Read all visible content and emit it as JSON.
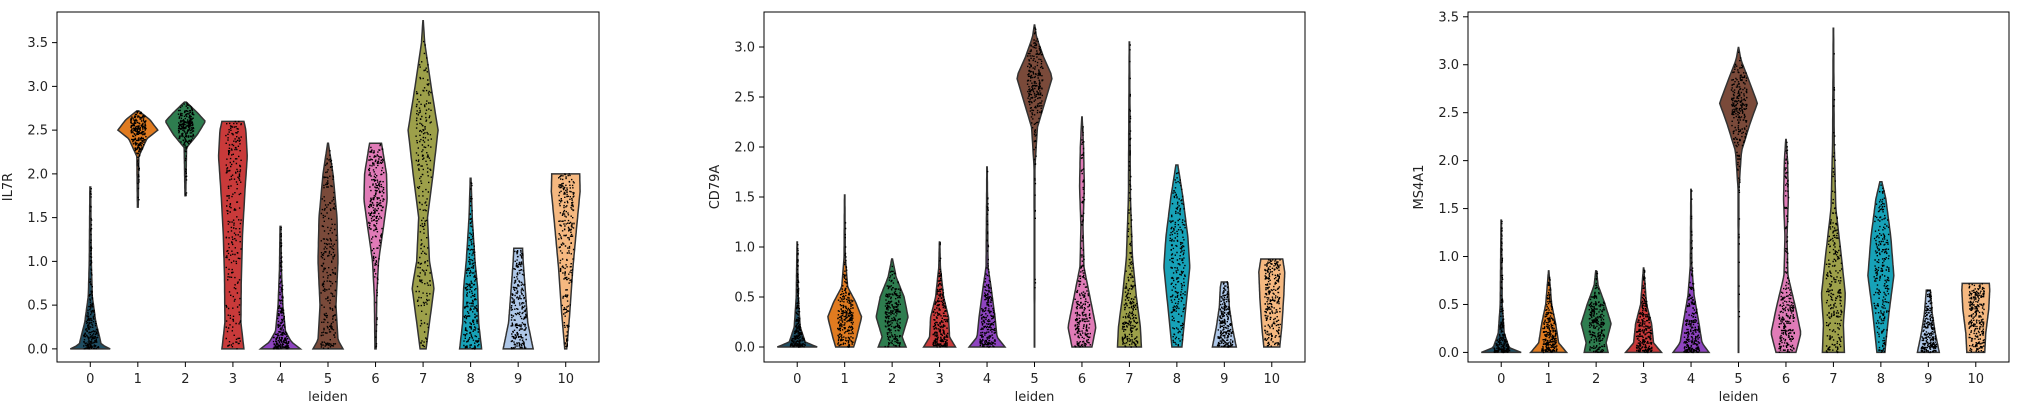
{
  "chart_data": [
    {
      "type": "violin",
      "ylabel": "IL7R",
      "xlabel": "leiden",
      "categories": [
        "0",
        "1",
        "2",
        "3",
        "4",
        "5",
        "6",
        "7",
        "8",
        "9",
        "10"
      ],
      "colors": [
        "#1f4e63",
        "#e07b20",
        "#2e7d4f",
        "#c93a3a",
        "#8e44c0",
        "#7a4a3a",
        "#e07bb7",
        "#9da04a",
        "#17a2b8",
        "#aec7e8",
        "#f5b880"
      ],
      "ylim": [
        -0.15,
        3.85
      ],
      "yticks": [
        "0.0",
        "0.5",
        "1.0",
        "1.5",
        "2.0",
        "2.5",
        "3.0",
        "3.5"
      ],
      "ytick_values": [
        0.0,
        0.5,
        1.0,
        1.5,
        2.0,
        2.5,
        3.0,
        3.5
      ],
      "series": [
        {
          "min": 0.0,
          "max": 1.85,
          "profile": [
            [
              0.0,
              1.0
            ],
            [
              0.05,
              0.55
            ],
            [
              0.15,
              0.45
            ],
            [
              0.3,
              0.28
            ],
            [
              0.6,
              0.1
            ],
            [
              1.0,
              0.05
            ],
            [
              1.85,
              0.02
            ]
          ]
        },
        {
          "min": 1.62,
          "max": 2.72,
          "profile": [
            [
              1.62,
              0.02
            ],
            [
              2.2,
              0.05
            ],
            [
              2.4,
              0.45
            ],
            [
              2.5,
              1.0
            ],
            [
              2.62,
              0.6
            ],
            [
              2.72,
              0.05
            ]
          ]
        },
        {
          "min": 1.75,
          "max": 2.82,
          "profile": [
            [
              1.75,
              0.02
            ],
            [
              2.3,
              0.06
            ],
            [
              2.45,
              0.6
            ],
            [
              2.6,
              1.0
            ],
            [
              2.7,
              0.6
            ],
            [
              2.82,
              0.05
            ]
          ]
        },
        {
          "min": 0.0,
          "max": 2.6,
          "profile": [
            [
              0.0,
              0.55
            ],
            [
              0.3,
              0.4
            ],
            [
              0.8,
              0.42
            ],
            [
              1.3,
              0.48
            ],
            [
              1.8,
              0.6
            ],
            [
              2.2,
              0.72
            ],
            [
              2.5,
              0.65
            ],
            [
              2.6,
              0.55
            ]
          ]
        },
        {
          "min": 0.0,
          "max": 1.4,
          "profile": [
            [
              0.0,
              1.0
            ],
            [
              0.08,
              0.55
            ],
            [
              0.2,
              0.25
            ],
            [
              0.5,
              0.12
            ],
            [
              0.9,
              0.05
            ],
            [
              1.4,
              0.02
            ]
          ]
        },
        {
          "min": 0.0,
          "max": 2.35,
          "profile": [
            [
              0.0,
              0.75
            ],
            [
              0.1,
              0.5
            ],
            [
              0.5,
              0.4
            ],
            [
              1.0,
              0.5
            ],
            [
              1.5,
              0.45
            ],
            [
              2.0,
              0.25
            ],
            [
              2.35,
              0.02
            ]
          ]
        },
        {
          "min": 0.0,
          "max": 2.35,
          "profile": [
            [
              0.0,
              0.03
            ],
            [
              0.6,
              0.06
            ],
            [
              1.0,
              0.15
            ],
            [
              1.4,
              0.4
            ],
            [
              1.7,
              0.58
            ],
            [
              2.0,
              0.55
            ],
            [
              2.35,
              0.3
            ]
          ]
        },
        {
          "min": 0.0,
          "max": 3.75,
          "profile": [
            [
              0.0,
              0.15
            ],
            [
              0.3,
              0.32
            ],
            [
              0.7,
              0.55
            ],
            [
              1.0,
              0.32
            ],
            [
              1.5,
              0.22
            ],
            [
              2.0,
              0.5
            ],
            [
              2.5,
              0.75
            ],
            [
              3.0,
              0.4
            ],
            [
              3.5,
              0.08
            ],
            [
              3.75,
              0.01
            ]
          ]
        },
        {
          "min": 0.0,
          "max": 1.95,
          "profile": [
            [
              0.0,
              0.55
            ],
            [
              0.3,
              0.4
            ],
            [
              0.7,
              0.35
            ],
            [
              1.0,
              0.22
            ],
            [
              1.5,
              0.08
            ],
            [
              1.95,
              0.02
            ]
          ]
        },
        {
          "min": 0.0,
          "max": 1.15,
          "profile": [
            [
              0.0,
              0.75
            ],
            [
              0.3,
              0.48
            ],
            [
              0.6,
              0.38
            ],
            [
              1.0,
              0.25
            ],
            [
              1.15,
              0.22
            ]
          ]
        },
        {
          "min": 0.0,
          "max": 2.0,
          "profile": [
            [
              0.0,
              0.05
            ],
            [
              0.4,
              0.2
            ],
            [
              0.9,
              0.35
            ],
            [
              1.4,
              0.55
            ],
            [
              1.8,
              0.72
            ],
            [
              2.0,
              0.7
            ]
          ]
        }
      ]
    },
    {
      "type": "violin",
      "ylabel": "CD79A",
      "xlabel": "leiden",
      "categories": [
        "0",
        "1",
        "2",
        "3",
        "4",
        "5",
        "6",
        "7",
        "8",
        "9",
        "10"
      ],
      "colors": [
        "#1f4e63",
        "#e07b20",
        "#2e7d4f",
        "#c93a3a",
        "#8e44c0",
        "#7a4a3a",
        "#e07bb7",
        "#9da04a",
        "#17a2b8",
        "#aec7e8",
        "#f5b880"
      ],
      "ylim": [
        -0.15,
        3.35
      ],
      "yticks": [
        "0.0",
        "0.5",
        "1.0",
        "1.5",
        "2.0",
        "2.5",
        "3.0"
      ],
      "ytick_values": [
        0.0,
        0.5,
        1.0,
        1.5,
        2.0,
        2.5,
        3.0
      ],
      "series": [
        {
          "min": 0.0,
          "max": 1.05,
          "profile": [
            [
              0.0,
              1.0
            ],
            [
              0.05,
              0.4
            ],
            [
              0.2,
              0.15
            ],
            [
              0.5,
              0.05
            ],
            [
              1.05,
              0.01
            ]
          ]
        },
        {
          "min": 0.0,
          "max": 1.52,
          "profile": [
            [
              0.0,
              0.45
            ],
            [
              0.1,
              0.6
            ],
            [
              0.3,
              0.85
            ],
            [
              0.45,
              0.55
            ],
            [
              0.6,
              0.15
            ],
            [
              0.9,
              0.03
            ],
            [
              1.52,
              0.01
            ]
          ]
        },
        {
          "min": 0.0,
          "max": 0.88,
          "profile": [
            [
              0.0,
              0.7
            ],
            [
              0.1,
              0.5
            ],
            [
              0.3,
              0.8
            ],
            [
              0.5,
              0.6
            ],
            [
              0.7,
              0.2
            ],
            [
              0.88,
              0.02
            ]
          ]
        },
        {
          "min": 0.0,
          "max": 1.05,
          "profile": [
            [
              0.0,
              0.8
            ],
            [
              0.1,
              0.5
            ],
            [
              0.3,
              0.45
            ],
            [
              0.5,
              0.2
            ],
            [
              0.8,
              0.04
            ],
            [
              1.05,
              0.01
            ]
          ]
        },
        {
          "min": 0.0,
          "max": 1.8,
          "profile": [
            [
              0.0,
              0.9
            ],
            [
              0.1,
              0.5
            ],
            [
              0.3,
              0.4
            ],
            [
              0.6,
              0.2
            ],
            [
              0.8,
              0.05
            ],
            [
              1.8,
              0.01
            ]
          ]
        },
        {
          "min": 0.0,
          "max": 3.22,
          "profile": [
            [
              0.0,
              0.01
            ],
            [
              1.8,
              0.02
            ],
            [
              2.2,
              0.15
            ],
            [
              2.5,
              0.6
            ],
            [
              2.7,
              0.9
            ],
            [
              2.9,
              0.45
            ],
            [
              3.1,
              0.1
            ],
            [
              3.22,
              0.01
            ]
          ]
        },
        {
          "min": 0.0,
          "max": 2.3,
          "profile": [
            [
              0.0,
              0.5
            ],
            [
              0.2,
              0.7
            ],
            [
              0.45,
              0.45
            ],
            [
              0.8,
              0.1
            ],
            [
              1.2,
              0.05
            ],
            [
              1.6,
              0.12
            ],
            [
              2.0,
              0.08
            ],
            [
              2.3,
              0.01
            ]
          ]
        },
        {
          "min": 0.0,
          "max": 3.05,
          "profile": [
            [
              0.0,
              0.6
            ],
            [
              0.2,
              0.55
            ],
            [
              0.5,
              0.35
            ],
            [
              0.9,
              0.15
            ],
            [
              1.5,
              0.05
            ],
            [
              3.05,
              0.01
            ]
          ]
        },
        {
          "min": 0.0,
          "max": 1.82,
          "profile": [
            [
              0.0,
              0.25
            ],
            [
              0.4,
              0.45
            ],
            [
              0.8,
              0.65
            ],
            [
              1.1,
              0.55
            ],
            [
              1.5,
              0.3
            ],
            [
              1.82,
              0.05
            ]
          ]
        },
        {
          "min": 0.0,
          "max": 0.65,
          "profile": [
            [
              0.0,
              0.6
            ],
            [
              0.2,
              0.4
            ],
            [
              0.4,
              0.25
            ],
            [
              0.6,
              0.2
            ],
            [
              0.65,
              0.15
            ]
          ]
        },
        {
          "min": 0.0,
          "max": 0.88,
          "profile": [
            [
              0.0,
              0.4
            ],
            [
              0.2,
              0.5
            ],
            [
              0.5,
              0.6
            ],
            [
              0.75,
              0.65
            ],
            [
              0.88,
              0.55
            ]
          ]
        }
      ]
    },
    {
      "type": "violin",
      "ylabel": "MS4A1",
      "xlabel": "leiden",
      "categories": [
        "0",
        "1",
        "2",
        "3",
        "4",
        "5",
        "6",
        "7",
        "8",
        "9",
        "10"
      ],
      "colors": [
        "#1f4e63",
        "#e07b20",
        "#2e7d4f",
        "#c93a3a",
        "#8e44c0",
        "#7a4a3a",
        "#e07bb7",
        "#9da04a",
        "#17a2b8",
        "#aec7e8",
        "#f5b880"
      ],
      "ylim": [
        -0.1,
        3.55
      ],
      "yticks": [
        "0.0",
        "0.5",
        "1.0",
        "1.5",
        "2.0",
        "2.5",
        "3.0",
        "3.5"
      ],
      "ytick_values": [
        0.0,
        0.5,
        1.0,
        1.5,
        2.0,
        2.5,
        3.0,
        3.5
      ],
      "series": [
        {
          "min": 0.0,
          "max": 1.38,
          "profile": [
            [
              0.0,
              1.0
            ],
            [
              0.05,
              0.4
            ],
            [
              0.2,
              0.15
            ],
            [
              0.5,
              0.05
            ],
            [
              1.38,
              0.01
            ]
          ]
        },
        {
          "min": 0.0,
          "max": 0.85,
          "profile": [
            [
              0.0,
              0.9
            ],
            [
              0.1,
              0.5
            ],
            [
              0.3,
              0.35
            ],
            [
              0.5,
              0.15
            ],
            [
              0.85,
              0.01
            ]
          ]
        },
        {
          "min": 0.0,
          "max": 0.85,
          "profile": [
            [
              0.0,
              0.6
            ],
            [
              0.1,
              0.5
            ],
            [
              0.3,
              0.75
            ],
            [
              0.5,
              0.45
            ],
            [
              0.7,
              0.1
            ],
            [
              0.85,
              0.02
            ]
          ]
        },
        {
          "min": 0.0,
          "max": 0.88,
          "profile": [
            [
              0.0,
              0.9
            ],
            [
              0.1,
              0.5
            ],
            [
              0.3,
              0.4
            ],
            [
              0.5,
              0.15
            ],
            [
              0.88,
              0.01
            ]
          ]
        },
        {
          "min": 0.0,
          "max": 1.7,
          "profile": [
            [
              0.0,
              0.9
            ],
            [
              0.1,
              0.55
            ],
            [
              0.3,
              0.4
            ],
            [
              0.6,
              0.15
            ],
            [
              0.9,
              0.04
            ],
            [
              1.7,
              0.01
            ]
          ]
        },
        {
          "min": 0.0,
          "max": 3.18,
          "profile": [
            [
              0.0,
              0.01
            ],
            [
              1.7,
              0.02
            ],
            [
              2.1,
              0.15
            ],
            [
              2.4,
              0.6
            ],
            [
              2.6,
              0.95
            ],
            [
              2.85,
              0.5
            ],
            [
              3.05,
              0.12
            ],
            [
              3.18,
              0.01
            ]
          ]
        },
        {
          "min": 0.0,
          "max": 2.22,
          "profile": [
            [
              0.0,
              0.5
            ],
            [
              0.2,
              0.75
            ],
            [
              0.45,
              0.5
            ],
            [
              0.8,
              0.1
            ],
            [
              1.2,
              0.05
            ],
            [
              1.6,
              0.12
            ],
            [
              2.0,
              0.08
            ],
            [
              2.22,
              0.01
            ]
          ]
        },
        {
          "min": 0.0,
          "max": 3.38,
          "profile": [
            [
              0.0,
              0.55
            ],
            [
              0.3,
              0.5
            ],
            [
              0.6,
              0.6
            ],
            [
              1.0,
              0.4
            ],
            [
              1.5,
              0.12
            ],
            [
              2.2,
              0.04
            ],
            [
              3.38,
              0.01
            ]
          ]
        },
        {
          "min": 0.0,
          "max": 1.78,
          "profile": [
            [
              0.0,
              0.2
            ],
            [
              0.4,
              0.4
            ],
            [
              0.8,
              0.65
            ],
            [
              1.2,
              0.5
            ],
            [
              1.6,
              0.25
            ],
            [
              1.78,
              0.05
            ]
          ]
        },
        {
          "min": 0.0,
          "max": 0.65,
          "profile": [
            [
              0.0,
              0.55
            ],
            [
              0.2,
              0.35
            ],
            [
              0.4,
              0.2
            ],
            [
              0.6,
              0.12
            ],
            [
              0.65,
              0.1
            ]
          ]
        },
        {
          "min": 0.0,
          "max": 0.72,
          "profile": [
            [
              0.0,
              0.45
            ],
            [
              0.2,
              0.5
            ],
            [
              0.45,
              0.65
            ],
            [
              0.65,
              0.7
            ],
            [
              0.72,
              0.68
            ]
          ]
        }
      ]
    }
  ]
}
